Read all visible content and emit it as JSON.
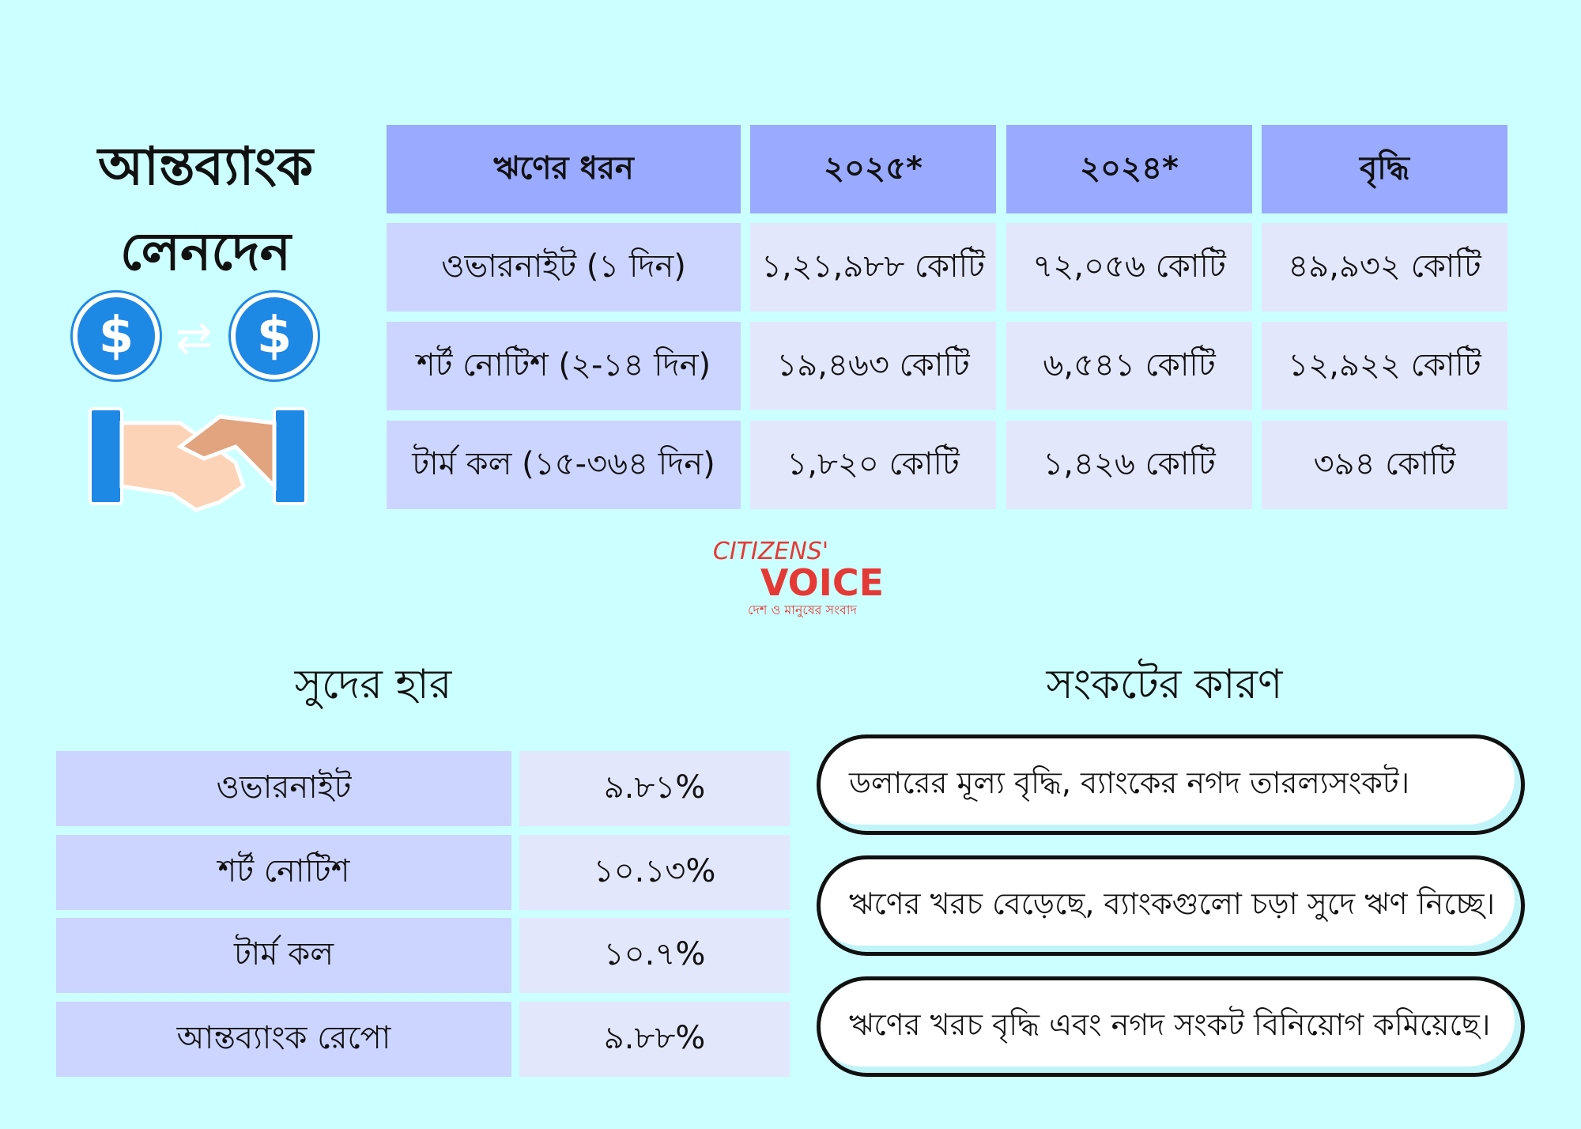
{
  "title": {
    "line1": "আন্তব্যাংক",
    "line2": "লেনদেন"
  },
  "icons": {
    "coin1": "dollar-coin-icon",
    "swap": "swap-arrows-icon",
    "coin2": "dollar-coin-icon",
    "handshake": "handshake-icon",
    "coin_symbol": "$"
  },
  "main_table": {
    "headers": [
      "ঋণের ধরন",
      "২০২৫*",
      "২০২৪*",
      "বৃদ্ধি"
    ],
    "rows": [
      [
        "ওভারনাইট (১ দিন)",
        "১,২১,৯৮৮ কোটি",
        "৭২,০৫৬ কোটি",
        "৪৯,৯৩২ কোটি"
      ],
      [
        "শর্ট নোটিশ (২-১৪ দিন)",
        "১৯,৪৬৩ কোটি",
        "৬,৫৪১ কোটি",
        "১২,৯২২ কোটি"
      ],
      [
        "টার্ম কল (১৫-৩৬৪ দিন)",
        "১,৮২০ কোটি",
        "১,৪২৬ কোটি",
        "৩৯৪ কোটি"
      ]
    ]
  },
  "logo": {
    "line1": "CITIZENS'",
    "line2": "VOICE",
    "tagline": "দেশ ও মানুষের সংবাদ",
    "color": "#e53935"
  },
  "rates": {
    "title": "সুদের হার",
    "rows": [
      [
        "ওভারনাইট",
        "৯.৮১%"
      ],
      [
        "শর্ট নোটিশ",
        "১০.১৩%"
      ],
      [
        "টার্ম কল",
        "১০.৭%"
      ],
      [
        "আন্তব্যাংক রেপো",
        "৯.৮৮%"
      ]
    ]
  },
  "causes": {
    "title": "সংকটের কারণ",
    "items": [
      "ডলারের মূল্য বৃদ্ধি, ব্যাংকের নগদ তারল্যসংকট।",
      "ঋণের খরচ বেড়েছে, ব্যাংকগুলো চড়া সুদে ঋণ নিচ্ছে।",
      "ঋণের খরচ বৃদ্ধি এবং নগদ সংকট বিনিয়োগ কমিয়েছে।"
    ]
  },
  "colors": {
    "background": "#ccffff",
    "header": "#99aaff",
    "first_col": "#ccd5ff",
    "cells": "#e2e7fc",
    "icon_blue": "#1e88e5"
  }
}
